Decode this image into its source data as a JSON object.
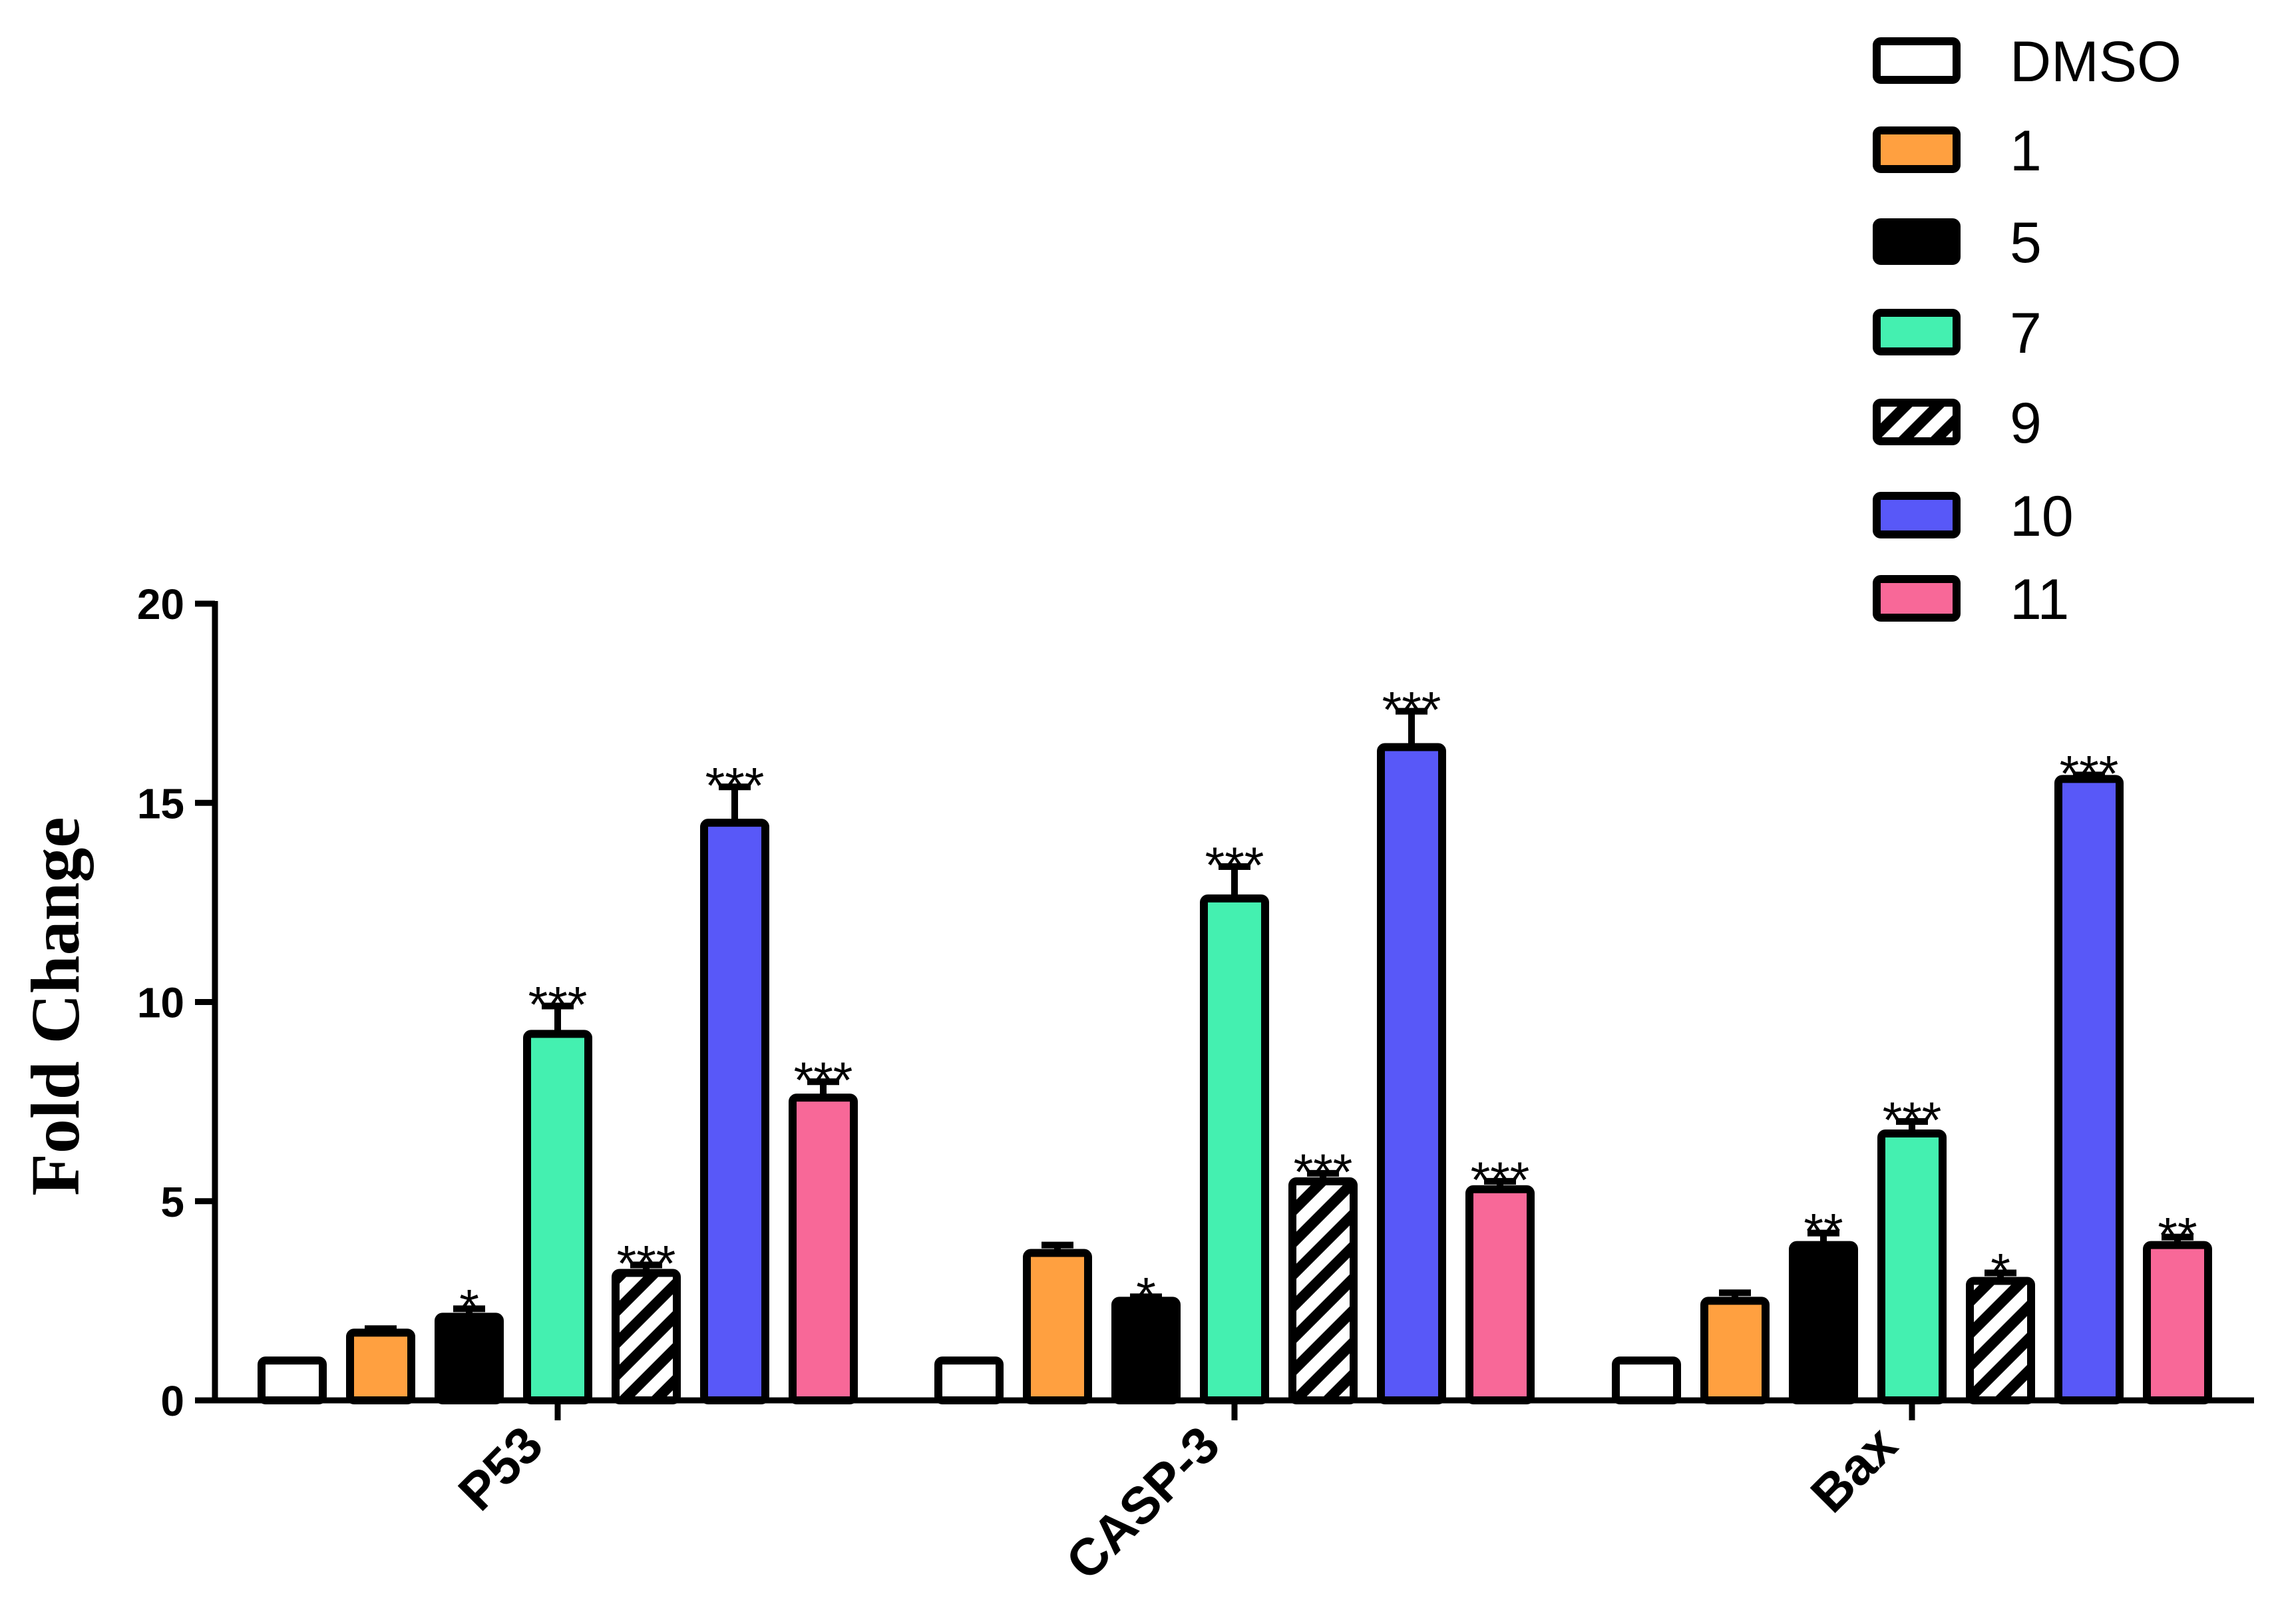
{
  "chart_data": {
    "type": "bar",
    "title": "",
    "xlabel": "",
    "ylabel": "Fold Change",
    "ylim": [
      0,
      20
    ],
    "yticks": [
      "0",
      "5",
      "10",
      "15",
      "20"
    ],
    "categories": [
      "P53",
      "CASP-3",
      "Bax"
    ],
    "legend_position": "top-right",
    "series": [
      {
        "name": "DMSO",
        "color": "#ffffff",
        "pattern": "solid",
        "values": [
          1.0,
          1.0,
          1.0
        ],
        "errors": [
          0,
          0,
          0
        ],
        "sig": [
          "",
          "",
          ""
        ]
      },
      {
        "name": "1",
        "color": "#ffa040",
        "pattern": "solid",
        "values": [
          1.7,
          3.7,
          2.5
        ],
        "errors": [
          0.1,
          0.2,
          0.2
        ],
        "sig": [
          "",
          "",
          ""
        ]
      },
      {
        "name": "5",
        "color": "#000000",
        "pattern": "solid",
        "values": [
          2.1,
          2.5,
          3.9
        ],
        "errors": [
          0.2,
          0.1,
          0.3
        ],
        "sig": [
          "*",
          "*",
          "**"
        ]
      },
      {
        "name": "7",
        "color": "#44f0b0",
        "pattern": "solid",
        "values": [
          9.2,
          12.6,
          6.7
        ],
        "errors": [
          0.7,
          0.8,
          0.3
        ],
        "sig": [
          "***",
          "***",
          "***"
        ]
      },
      {
        "name": "9",
        "color": "#ffffff",
        "pattern": "hatched",
        "values": [
          3.2,
          5.5,
          3.0
        ],
        "errors": [
          0.2,
          0.2,
          0.2
        ],
        "sig": [
          "***",
          "***",
          "*"
        ]
      },
      {
        "name": "10",
        "color": "#5858f8",
        "pattern": "solid",
        "values": [
          14.5,
          16.4,
          15.6
        ],
        "errors": [
          0.9,
          0.9,
          0.1
        ],
        "sig": [
          "***",
          "***",
          "***"
        ]
      },
      {
        "name": "11",
        "color": "#f86898",
        "pattern": "solid",
        "values": [
          7.6,
          5.3,
          3.9
        ],
        "errors": [
          0.4,
          0.2,
          0.2
        ],
        "sig": [
          "***",
          "***",
          "**"
        ]
      }
    ]
  }
}
